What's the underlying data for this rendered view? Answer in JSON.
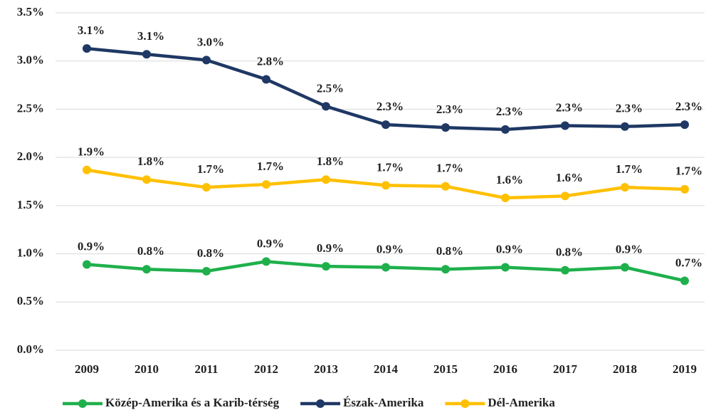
{
  "chart_data": {
    "type": "line",
    "categories": [
      "2009",
      "2010",
      "2011",
      "2012",
      "2013",
      "2014",
      "2015",
      "2016",
      "2017",
      "2018",
      "2019"
    ],
    "series": [
      {
        "name": "Közép-Amerika és a Karib-térség",
        "color": "#1fb04c",
        "values": [
          0.89,
          0.84,
          0.82,
          0.92,
          0.87,
          0.86,
          0.84,
          0.86,
          0.83,
          0.86,
          0.72
        ],
        "value_labels": [
          "0.9%",
          "0.8%",
          "0.8%",
          "0.9%",
          "0.9%",
          "0.9%",
          "0.8%",
          "0.9%",
          "0.8%",
          "0.9%",
          "0.7%"
        ]
      },
      {
        "name": "Észak-Amerika",
        "color": "#1f3864",
        "values": [
          3.13,
          3.07,
          3.01,
          2.81,
          2.53,
          2.34,
          2.31,
          2.29,
          2.33,
          2.32,
          2.34
        ],
        "value_labels": [
          "3.1%",
          "3.1%",
          "3.0%",
          "2.8%",
          "2.5%",
          "2.3%",
          "2.3%",
          "2.3%",
          "2.3%",
          "2.3%",
          "2.3%"
        ]
      },
      {
        "name": "Dél-Amerika",
        "color": "#ffc000",
        "values": [
          1.87,
          1.77,
          1.69,
          1.72,
          1.77,
          1.71,
          1.7,
          1.58,
          1.6,
          1.69,
          1.67
        ],
        "value_labels": [
          "1.9%",
          "1.8%",
          "1.7%",
          "1.7%",
          "1.8%",
          "1.7%",
          "1.7%",
          "1.6%",
          "1.6%",
          "1.7%",
          "1.7%"
        ]
      }
    ],
    "ylim": [
      0,
      3.5
    ],
    "yticks": [
      {
        "value": 0,
        "label": "0.0%"
      },
      {
        "value": 0.5,
        "label": "0.5%"
      },
      {
        "value": 1,
        "label": "1.0%"
      },
      {
        "value": 1.5,
        "label": "1.5%"
      },
      {
        "value": 2,
        "label": "2.0%"
      },
      {
        "value": 2.5,
        "label": "2.5%"
      },
      {
        "value": 3,
        "label": "3.0%"
      },
      {
        "value": 3.5,
        "label": "3.5%"
      }
    ],
    "grid": true,
    "legend": "bottom"
  }
}
